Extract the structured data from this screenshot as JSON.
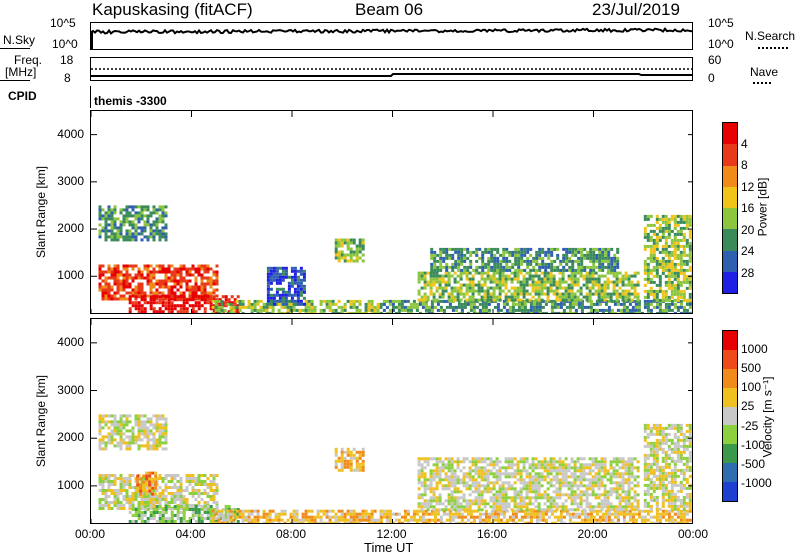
{
  "header": {
    "site": "Kapuskasing (fitACF)",
    "beam": "Beam 06",
    "date": "23/Jul/2019"
  },
  "top_panels": {
    "nsky_label": "N.Sky",
    "nsky_top": "10^5",
    "nsky_bottom": "10^0",
    "nsearch_top": "10^5",
    "nsearch_bottom": "10^0",
    "nsearch_label": "N.Search",
    "freq_label_1": "Freq.",
    "freq_label_2": "[MHz]",
    "freq_top": "18",
    "freq_bottom": "8",
    "nave_top": "60",
    "nave_bottom": "0",
    "nave_label": "Nave",
    "cpid_label": "CPID",
    "cpid_text": "themis  -3300"
  },
  "chart_data": [
    {
      "type": "heatmap",
      "title": "",
      "xlabel": "",
      "ylabel": "Slant Range [km]",
      "x_ticks": [
        "00:00",
        "04:00",
        "08:00",
        "12:00",
        "16:00",
        "20:00",
        "00:00"
      ],
      "y_ticks": [
        "1000",
        "2000",
        "3000",
        "4000"
      ],
      "ylim": [
        180,
        4500
      ],
      "colorbar_label": "Power [dB]",
      "colorbar_ticks": [
        "4",
        "8",
        "12",
        "16",
        "20",
        "24",
        "28"
      ],
      "colors": [
        "#1f1fe6",
        "#2e5fb0",
        "#3a8a5a",
        "#8cc63f",
        "#f0c419",
        "#f08a1a",
        "#e83a1a",
        "#e60000"
      ],
      "regions": [
        {
          "t0": 0.3,
          "t1": 5.0,
          "r0": 550,
          "r1": 1250,
          "level": 6
        },
        {
          "t0": 1.5,
          "t1": 5.8,
          "r0": 180,
          "r1": 600,
          "level": 7
        },
        {
          "t0": 0.3,
          "t1": 3.0,
          "r0": 1800,
          "r1": 2500,
          "level": 2
        },
        {
          "t0": 4.8,
          "t1": 11.5,
          "r0": 180,
          "r1": 500,
          "level": 3
        },
        {
          "t0": 11.5,
          "t1": 24.0,
          "r0": 180,
          "r1": 500,
          "level": 2
        },
        {
          "t0": 13.0,
          "t1": 21.8,
          "r0": 500,
          "r1": 1100,
          "level": 3
        },
        {
          "t0": 13.5,
          "t1": 21.0,
          "r0": 1100,
          "r1": 1600,
          "level": 2
        },
        {
          "t0": 9.7,
          "t1": 10.8,
          "r0": 1300,
          "r1": 1800,
          "level": 3
        },
        {
          "t0": 22.0,
          "t1": 24.0,
          "r0": 500,
          "r1": 2300,
          "level": 3
        },
        {
          "t0": 7.0,
          "t1": 8.5,
          "r0": 400,
          "r1": 1200,
          "level": 1
        }
      ]
    },
    {
      "type": "heatmap",
      "title": "",
      "xlabel": "Time UT",
      "ylabel": "Slant Range [km]",
      "x_ticks": [
        "00:00",
        "04:00",
        "08:00",
        "12:00",
        "16:00",
        "20:00",
        "00:00"
      ],
      "y_ticks": [
        "1000",
        "2000",
        "3000",
        "4000"
      ],
      "ylim": [
        180,
        4500
      ],
      "colorbar_label": "Velocity  [m s⁻¹]",
      "colorbar_ticks": [
        "1000",
        "500",
        "100",
        "25",
        "-25",
        "-100",
        "-500",
        "-1000"
      ],
      "colors": [
        "#1f3fd0",
        "#2e6eb0",
        "#3a9a4a",
        "#8cd040",
        "#c8c8c8",
        "#f0c020",
        "#f08a1a",
        "#f04a1a",
        "#e60000"
      ],
      "regions": [
        {
          "t0": 0.3,
          "t1": 5.0,
          "r0": 550,
          "r1": 1250,
          "level": 4
        },
        {
          "t0": 0.3,
          "t1": 3.0,
          "r0": 1800,
          "r1": 2500,
          "level": 4
        },
        {
          "t0": 1.5,
          "t1": 5.8,
          "r0": 180,
          "r1": 600,
          "level": 3
        },
        {
          "t0": 4.8,
          "t1": 11.5,
          "r0": 180,
          "r1": 500,
          "level": 5
        },
        {
          "t0": 11.5,
          "t1": 24.0,
          "r0": 180,
          "r1": 500,
          "level": 5
        },
        {
          "t0": 13.0,
          "t1": 21.8,
          "r0": 500,
          "r1": 1600,
          "level": 4
        },
        {
          "t0": 9.7,
          "t1": 10.8,
          "r0": 1300,
          "r1": 1800,
          "level": 5
        },
        {
          "t0": 22.0,
          "t1": 24.0,
          "r0": 500,
          "r1": 2300,
          "level": 4
        },
        {
          "t0": 1.8,
          "t1": 2.6,
          "r0": 800,
          "r1": 1300,
          "level": 6
        }
      ]
    }
  ]
}
